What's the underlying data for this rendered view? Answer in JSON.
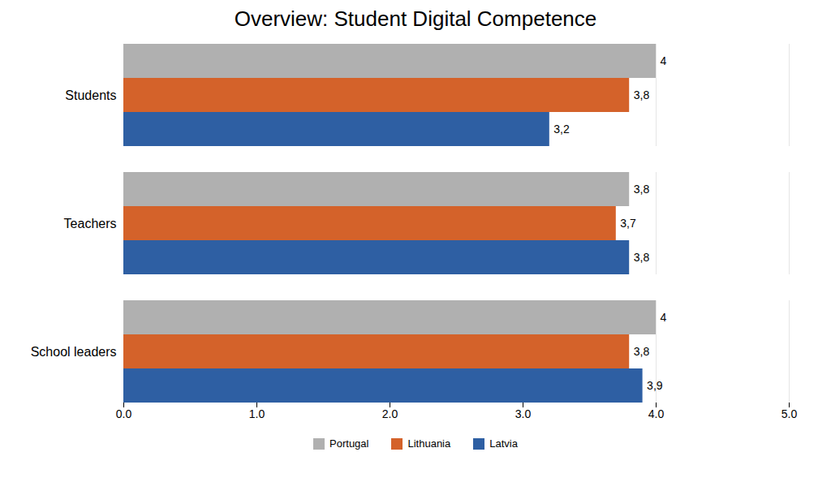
{
  "chart_data": {
    "type": "bar",
    "orientation": "horizontal",
    "title": "Overview: Student Digital Competence",
    "categories": [
      "School leaders",
      "Teachers",
      "Students"
    ],
    "series": [
      {
        "name": "Portugal",
        "color": "#b0b0b0",
        "values": [
          4.0,
          3.8,
          4.0
        ],
        "value_labels": [
          "4",
          "3,8",
          "4"
        ]
      },
      {
        "name": "Lithuania",
        "color": "#d4622a",
        "values": [
          3.8,
          3.7,
          3.8
        ],
        "value_labels": [
          "3,8",
          "3,7",
          "3,8"
        ]
      },
      {
        "name": "Latvia",
        "color": "#2e5fa3",
        "values": [
          3.9,
          3.8,
          3.2
        ],
        "value_labels": [
          "3,9",
          "3,8",
          "3,2"
        ]
      }
    ],
    "xlim": [
      0,
      5
    ],
    "xticks": [
      0,
      1,
      2,
      3,
      4,
      5
    ],
    "grid": true,
    "data_labels": true,
    "legend": "bottom"
  }
}
